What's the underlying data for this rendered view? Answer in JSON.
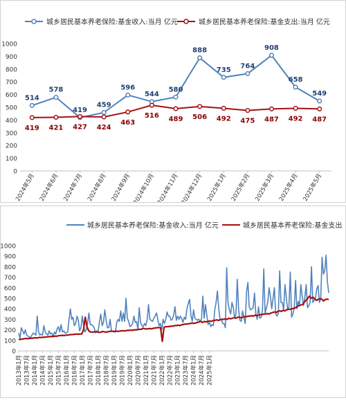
{
  "chart_data": [
    {
      "type": "line",
      "legend_position": "top",
      "legend": [
        "城乡居民基本养老保险:基金收入:当月 亿元",
        "城乡居民基本养老保险:基金支出:当月 亿元"
      ],
      "categories": [
        "2024年5月",
        "2024年6月",
        "2024年7月",
        "2024年8月",
        "2024年9月",
        "2024年10月",
        "2024年11月",
        "2024年12月",
        "2025年1月",
        "2025年2月",
        "2025年3月",
        "2025年4月",
        "2025年5月"
      ],
      "ylim": [
        0,
        1000
      ],
      "yticks": [
        "0",
        "100",
        "200",
        "300",
        "400",
        "500",
        "600",
        "700",
        "800",
        "900",
        "1000"
      ],
      "grid": false,
      "series": [
        {
          "name": "城乡居民基本养老保险:基金收入:当月 亿元",
          "color": "#4f81bd",
          "label_color": "#1f3f6e",
          "values": [
            514,
            578,
            419,
            459,
            596,
            544,
            580,
            888,
            735,
            764,
            908,
            658,
            549
          ]
        },
        {
          "name": "城乡居民基本养老保险:基金支出:当月 亿元",
          "color": "#a50f0f",
          "label_color": "#8b0000",
          "values": [
            419,
            421,
            427,
            424,
            463,
            516,
            489,
            506,
            492,
            475,
            487,
            492,
            487
          ]
        }
      ],
      "data_labels": {
        "s0": [
          "514",
          "578",
          "419",
          "459",
          "596",
          "544",
          "580",
          "888",
          "735",
          "764",
          "908",
          "658",
          "549"
        ],
        "s1": [
          "419",
          "421",
          "427",
          "424",
          "463",
          "516",
          "489",
          "506",
          "492",
          "475",
          "487",
          "492",
          "487"
        ]
      }
    },
    {
      "type": "line",
      "legend_position": "top",
      "legend": [
        "城乡居民基本养老保险:基金收入:当月 亿元",
        "城乡居民基本养老保险:基金支出"
      ],
      "x_tick_labels": [
        "2013年1月",
        "2013年7月",
        "2014年1月",
        "2014年7月",
        "2015年1月",
        "2015年7月",
        "2016年1月",
        "2016年7月",
        "2017年1月",
        "2017年7月",
        "2018年1月",
        "2018年7月",
        "2019年1月",
        "2019年7月",
        "2020年1月",
        "2020年7月",
        "2021年1月",
        "2021年7月",
        "2022年1月",
        "2022年7月",
        "2023年1月",
        "2023年7月",
        "2024年1月",
        "2024年7月",
        "2025年1月"
      ],
      "ylim": [
        0,
        1000
      ],
      "yticks": [
        "0",
        "100",
        "200",
        "300",
        "400",
        "500",
        "600",
        "700",
        "800",
        "900",
        "1000"
      ],
      "grid": false,
      "start": "2013年1月",
      "series": [
        {
          "name": "城乡居民基本养老保险:基金收入:当月 亿元",
          "color": "#4f81bd",
          "values": [
            170,
            120,
            220,
            190,
            160,
            200,
            150,
            140,
            130,
            130,
            150,
            170,
            160,
            150,
            330,
            180,
            150,
            160,
            150,
            240,
            180,
            160,
            150,
            190,
            160,
            170,
            130,
            180,
            160,
            210,
            230,
            180,
            250,
            180,
            190,
            170,
            170,
            180,
            300,
            400,
            300,
            320,
            240,
            260,
            330,
            290,
            190,
            220,
            330,
            240,
            180,
            200,
            260,
            360,
            250,
            250,
            240,
            220,
            170,
            190,
            190,
            280,
            350,
            240,
            270,
            390,
            290,
            220,
            220,
            300,
            190,
            190,
            180,
            180,
            270,
            300,
            280,
            380,
            280,
            360,
            280,
            500,
            310,
            280,
            230,
            240,
            260,
            330,
            270,
            280,
            200,
            410,
            270,
            240,
            230,
            260,
            240,
            300,
            440,
            300,
            290,
            280,
            310,
            330,
            360,
            300,
            240,
            260,
            200,
            300,
            260,
            300,
            370,
            330,
            330,
            290,
            300,
            340,
            420,
            290,
            330,
            300,
            330,
            310,
            270,
            320,
            300,
            400,
            450,
            490,
            340,
            280,
            390,
            310,
            300,
            290,
            300,
            280,
            300,
            520,
            310,
            440,
            340,
            250,
            270,
            230,
            250,
            240,
            390,
            460,
            570,
            400,
            300,
            300,
            260,
            260,
            220,
            790,
            460,
            390,
            350,
            460,
            410,
            310,
            350,
            680,
            390,
            290,
            280,
            380,
            320,
            260,
            560,
            650,
            420,
            390,
            400,
            410,
            550,
            350,
            300,
            420,
            310,
            320,
            380,
            780,
            360,
            410,
            460,
            600,
            520,
            400,
            500,
            600,
            350,
            330,
            360,
            760,
            460,
            460,
            390,
            630,
            510,
            390,
            420,
            750,
            320,
            350,
            410,
            670,
            400,
            470,
            430,
            630,
            520,
            430,
            510,
            630,
            410,
            430,
            460,
            800,
            460,
            480,
            500,
            590,
            620,
            460,
            500,
            890,
            730,
            760,
            910,
            660,
            550
          ]
        },
        {
          "name": "城乡居民基本养老保险:基金支出",
          "color": "#a50f0f",
          "values": [
            110,
            108,
            112,
            115,
            118,
            115,
            118,
            120,
            120,
            125,
            122,
            125,
            128,
            127,
            130,
            130,
            132,
            135,
            135,
            138,
            138,
            140,
            140,
            145,
            145,
            148,
            145,
            150,
            150,
            153,
            155,
            155,
            158,
            160,
            158,
            160,
            160,
            200,
            320,
            230,
            190,
            180,
            178,
            180,
            182,
            180,
            175,
            178,
            185,
            180,
            178,
            182,
            185,
            188,
            185,
            185,
            188,
            185,
            190,
            190,
            192,
            190,
            195,
            195,
            198,
            195,
            200,
            200,
            202,
            205,
            205,
            215,
            210,
            208,
            210,
            212,
            210,
            215,
            218,
            220,
            222,
            220,
            90,
            225,
            230,
            230,
            232,
            235,
            235,
            240,
            240,
            245,
            240,
            248,
            250,
            255,
            255,
            258,
            260,
            265,
            260,
            265,
            270,
            275,
            280,
            270,
            280,
            275,
            280,
            285,
            280,
            288,
            290,
            295,
            290,
            295,
            300,
            300,
            305,
            300,
            310,
            305,
            310,
            315,
            310,
            320,
            320,
            315,
            320,
            325,
            325,
            330,
            330,
            335,
            330,
            340,
            335,
            340,
            345,
            345,
            350,
            350,
            355,
            350,
            360,
            365,
            370,
            365,
            375,
            380,
            375,
            385,
            380,
            390,
            395,
            395,
            400,
            405,
            410,
            420,
            430,
            435,
            440,
            460,
            480,
            500,
            520,
            500,
            510,
            495,
            480,
            490,
            495,
            492,
            475,
            487,
            492,
            487
          ]
        }
      ]
    }
  ]
}
